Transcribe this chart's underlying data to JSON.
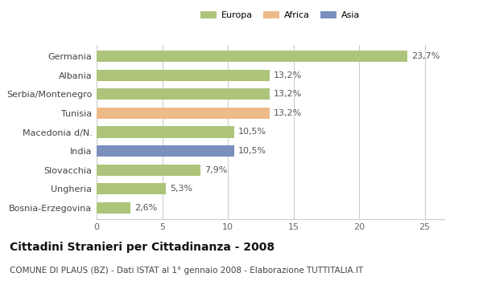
{
  "categories": [
    "Bosnia-Erzegovina",
    "Ungheria",
    "Slovacchia",
    "India",
    "Macedonia d/N.",
    "Tunisia",
    "Serbia/Montenegro",
    "Albania",
    "Germania"
  ],
  "values": [
    2.6,
    5.3,
    7.9,
    10.5,
    10.5,
    13.2,
    13.2,
    13.2,
    23.7
  ],
  "labels": [
    "2,6%",
    "5,3%",
    "7,9%",
    "10,5%",
    "10,5%",
    "13,2%",
    "13,2%",
    "13,2%",
    "23,7%"
  ],
  "colors": [
    "#adc47a",
    "#adc47a",
    "#adc47a",
    "#7b8fbe",
    "#adc47a",
    "#eeba8a",
    "#adc47a",
    "#adc47a",
    "#adc47a"
  ],
  "legend_items": [
    {
      "label": "Europa",
      "color": "#adc47a"
    },
    {
      "label": "Africa",
      "color": "#eeba8a"
    },
    {
      "label": "Asia",
      "color": "#7b8fbe"
    }
  ],
  "xlim": [
    0,
    26.5
  ],
  "xticks": [
    0,
    5,
    10,
    15,
    20,
    25
  ],
  "title": "Cittadini Stranieri per Cittadinanza - 2008",
  "subtitle": "COMUNE DI PLAUS (BZ) - Dati ISTAT al 1° gennaio 2008 - Elaborazione TUTTITALIA.IT",
  "bar_height": 0.6,
  "background_color": "#ffffff",
  "grid_color": "#cccccc",
  "label_fontsize": 8,
  "tick_fontsize": 8,
  "title_fontsize": 10,
  "subtitle_fontsize": 7.5
}
